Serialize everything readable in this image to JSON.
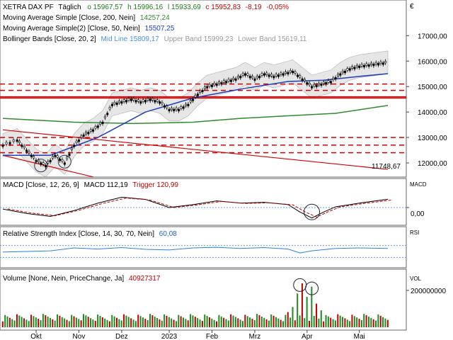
{
  "header": {
    "symbol": "XETRA DAX PF",
    "interval": "Täglich",
    "open": "o 15967,57",
    "high": "h 15996,16",
    "low": "l 15933,69",
    "close": "c 15952,83",
    "change": "-8,19",
    "change_pct": "-0,05%"
  },
  "indicators": {
    "sma200": {
      "label": "Moving Average Simple [Close, 200, Nein]",
      "value": "14257,24",
      "color": "#2e8b2e"
    },
    "sma50": {
      "label": "Moving Average Simple(2) [Close, 50, Nein]",
      "value": "15507,25",
      "color": "#1c3fb8"
    },
    "bollinger": {
      "label": "Bollinger Bands [Close, 20, 2]",
      "mid": "Mid Line 15809,17",
      "upper": "Upper Band 15999,23",
      "lower": "Lower Band 15619,11",
      "mid_color": "#4a90e2",
      "band_color": "#b0b0b0"
    }
  },
  "trendline_label": "11748,67",
  "top_right_symbol": "€",
  "macd_panel": {
    "label": "MACD [Close, 12, 26, 9]",
    "macd": "MACD 112,19",
    "trigger": "Trigger 120,99",
    "side": "MACD",
    "zero": "0,00"
  },
  "rsi_panel": {
    "label": "Relative Strength Index [Close, 14, 30, 70, Nein]",
    "value": "60,08",
    "side": "RSI"
  },
  "volume_panel": {
    "label": "Volume [None, Nein, PriceChange, Ja]",
    "value": "40927317",
    "side": "VOL",
    "tick": "200000000"
  },
  "chart_data": {
    "type": "candlestick",
    "x_ticks": [
      "Okt",
      "Nov",
      "Dez",
      "2023",
      "Feb",
      "Mrz",
      "Apr",
      "Mai"
    ],
    "y_ticks": [
      "17000,00",
      "16000,00",
      "15000,00",
      "14000,00",
      "13000,00",
      "12000,00"
    ],
    "ylim": [
      11500,
      17900
    ],
    "close_path": [
      [
        0,
        12700
      ],
      [
        6,
        12900
      ],
      [
        10,
        12500
      ],
      [
        14,
        12100
      ],
      [
        18,
        11900
      ],
      [
        22,
        12300
      ],
      [
        26,
        12000
      ],
      [
        30,
        12700
      ],
      [
        34,
        13100
      ],
      [
        38,
        13300
      ],
      [
        42,
        13600
      ],
      [
        46,
        14300
      ],
      [
        50,
        14400
      ],
      [
        54,
        14500
      ],
      [
        58,
        14400
      ],
      [
        62,
        14500
      ],
      [
        66,
        14400
      ],
      [
        70,
        14100
      ],
      [
        74,
        14100
      ],
      [
        78,
        14300
      ],
      [
        82,
        14700
      ],
      [
        86,
        15000
      ],
      [
        90,
        15100
      ],
      [
        94,
        15200
      ],
      [
        98,
        15300
      ],
      [
        102,
        15500
      ],
      [
        106,
        15300
      ],
      [
        110,
        15500
      ],
      [
        114,
        15400
      ],
      [
        118,
        15500
      ],
      [
        122,
        15600
      ],
      [
        126,
        15300
      ],
      [
        130,
        15000
      ],
      [
        134,
        15100
      ],
      [
        138,
        15200
      ],
      [
        142,
        15500
      ],
      [
        146,
        15700
      ],
      [
        150,
        15800
      ],
      [
        154,
        15850
      ],
      [
        158,
        15900
      ],
      [
        162,
        15950
      ]
    ],
    "sma200_path": [
      [
        0,
        13750
      ],
      [
        30,
        13600
      ],
      [
        55,
        13550
      ],
      [
        80,
        13600
      ],
      [
        100,
        13750
      ],
      [
        120,
        13850
      ],
      [
        140,
        13950
      ],
      [
        162,
        14257
      ]
    ],
    "sma50_path": [
      [
        0,
        12300
      ],
      [
        20,
        12300
      ],
      [
        40,
        13000
      ],
      [
        60,
        14000
      ],
      [
        80,
        14550
      ],
      [
        100,
        14900
      ],
      [
        120,
        15200
      ],
      [
        135,
        15250
      ],
      [
        150,
        15400
      ],
      [
        162,
        15507
      ]
    ],
    "horizontal_levels": [
      {
        "value": 15100,
        "style": "dashed",
        "color": "#d40000"
      },
      {
        "value": 14850,
        "style": "dashed",
        "color": "#d40000"
      },
      {
        "value": 14600,
        "style": "solid",
        "color": "#d40000"
      },
      {
        "value": 14550,
        "style": "solid",
        "color": "#d40000"
      },
      {
        "value": 13000,
        "style": "dashed",
        "color": "#d40000"
      },
      {
        "value": 12700,
        "style": "dashed",
        "color": "#d40000"
      },
      {
        "value": 12400,
        "style": "dashed",
        "color": "#d40000"
      }
    ],
    "trendlines": [
      {
        "from": [
          0,
          13300
        ],
        "to": [
          162,
          11748.67
        ]
      },
      {
        "from": [
          0,
          12300
        ],
        "to": [
          38,
          11450
        ]
      }
    ],
    "macd_path": [
      [
        0,
        -20
      ],
      [
        10,
        -80
      ],
      [
        20,
        -120
      ],
      [
        30,
        -40
      ],
      [
        40,
        60
      ],
      [
        50,
        140
      ],
      [
        60,
        110
      ],
      [
        70,
        0
      ],
      [
        80,
        40
      ],
      [
        90,
        90
      ],
      [
        100,
        60
      ],
      [
        110,
        70
      ],
      [
        120,
        40
      ],
      [
        125,
        -60
      ],
      [
        130,
        -140
      ],
      [
        135,
        -60
      ],
      [
        140,
        10
      ],
      [
        150,
        60
      ],
      [
        162,
        112
      ]
    ],
    "macd_ylim": [
      -220,
      220
    ],
    "rsi_path": [
      [
        0,
        48
      ],
      [
        10,
        50
      ],
      [
        20,
        52
      ],
      [
        30,
        62
      ],
      [
        40,
        58
      ],
      [
        50,
        63
      ],
      [
        60,
        57
      ],
      [
        70,
        55
      ],
      [
        80,
        62
      ],
      [
        90,
        64
      ],
      [
        100,
        60
      ],
      [
        110,
        63
      ],
      [
        120,
        58
      ],
      [
        125,
        45
      ],
      [
        130,
        52
      ],
      [
        140,
        60
      ],
      [
        150,
        62
      ],
      [
        162,
        60
      ]
    ],
    "rsi_ylim": [
      0,
      100
    ],
    "volume": [
      [
        120,
        90
      ],
      [
        122,
        120
      ],
      [
        124,
        200
      ],
      [
        126,
        260
      ],
      [
        128,
        180
      ],
      [
        130,
        240
      ],
      [
        132,
        140
      ],
      [
        134,
        100
      ]
    ]
  }
}
